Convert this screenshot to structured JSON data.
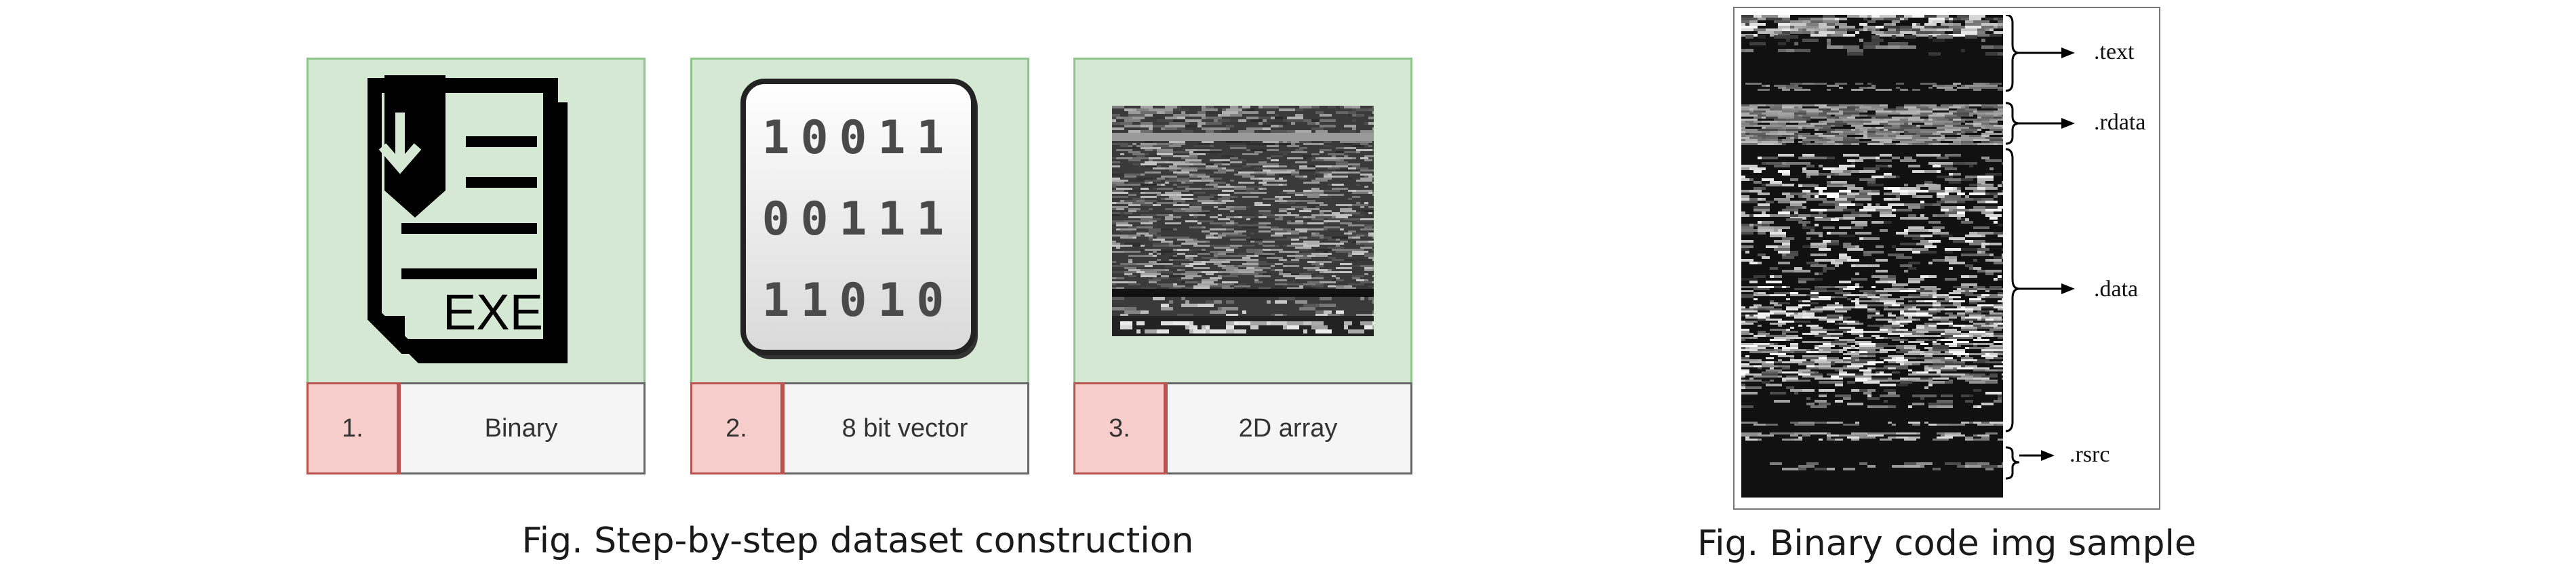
{
  "steps": [
    {
      "number": "1.",
      "label": "Binary",
      "icon_text": "EXE",
      "icon": "exe-file-icon"
    },
    {
      "number": "2.",
      "label": "8 bit vector",
      "icon": "binary-matrix-icon",
      "matrix_rows": [
        "10011",
        "00111",
        "11010"
      ]
    },
    {
      "number": "3.",
      "label": "2D array",
      "icon": "grayscale-image-icon"
    }
  ],
  "captions": {
    "left": "Fig. Step-by-step dataset construction",
    "right": "Fig. Binary code img sample"
  },
  "sections": {
    "text": ".text",
    "rdata": ".rdata",
    "data": ".data",
    "rsrc": ".rsrc"
  },
  "colors": {
    "card_fill": "#d5e8d4",
    "card_border": "#8fc58a",
    "number_fill": "#f8cecc",
    "number_border": "#b85450",
    "label_fill": "#f5f5f5"
  }
}
